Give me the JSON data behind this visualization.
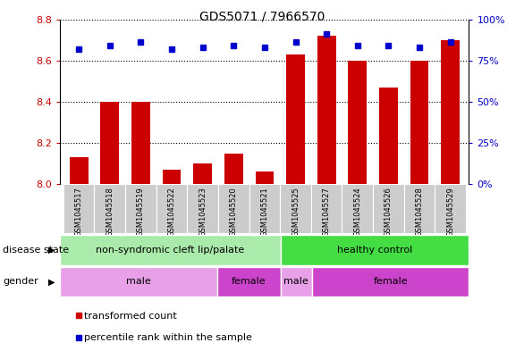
{
  "title": "GDS5071 / 7966570",
  "samples": [
    "GSM1045517",
    "GSM1045518",
    "GSM1045519",
    "GSM1045522",
    "GSM1045523",
    "GSM1045520",
    "GSM1045521",
    "GSM1045525",
    "GSM1045527",
    "GSM1045524",
    "GSM1045526",
    "GSM1045528",
    "GSM1045529"
  ],
  "bar_values": [
    8.13,
    8.4,
    8.4,
    8.07,
    8.1,
    8.15,
    8.06,
    8.63,
    8.72,
    8.6,
    8.47,
    8.6,
    8.7
  ],
  "percentile_values": [
    82,
    84,
    86,
    82,
    83,
    84,
    83,
    86,
    91,
    84,
    84,
    83,
    86
  ],
  "bar_color": "#cc0000",
  "percentile_color": "#0000cc",
  "ylim_left": [
    8.0,
    8.8
  ],
  "ylim_right": [
    0,
    100
  ],
  "yticks_left": [
    8.0,
    8.2,
    8.4,
    8.6,
    8.8
  ],
  "yticks_right": [
    0,
    25,
    50,
    75,
    100
  ],
  "disease_state_groups": [
    {
      "label": "non-syndromic cleft lip/palate",
      "start": 0,
      "end": 7,
      "color": "#aaeaaa"
    },
    {
      "label": "healthy control",
      "start": 7,
      "end": 13,
      "color": "#44dd44"
    }
  ],
  "gender_groups": [
    {
      "label": "male",
      "start": 0,
      "end": 5,
      "color": "#e8a0e8"
    },
    {
      "label": "female",
      "start": 5,
      "end": 7,
      "color": "#cc44cc"
    },
    {
      "label": "male",
      "start": 7,
      "end": 8,
      "color": "#e8a0e8"
    },
    {
      "label": "female",
      "start": 8,
      "end": 13,
      "color": "#cc44cc"
    }
  ],
  "legend_bar_label": "transformed count",
  "legend_percentile_label": "percentile rank within the sample",
  "disease_state_label": "disease state",
  "gender_label": "gender",
  "tick_label_color_left": "#cc0000",
  "tick_label_color_right": "#0000cc",
  "xtick_bg_color": "#cccccc",
  "bar_baseline": 8.0
}
